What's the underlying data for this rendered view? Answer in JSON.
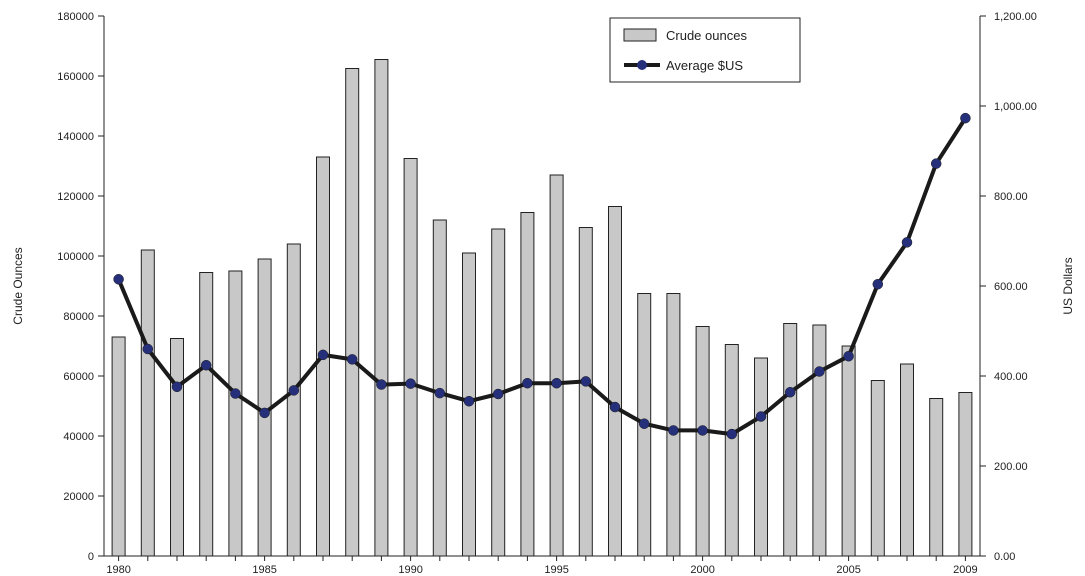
{
  "chart_data": {
    "type": "bar",
    "xlabel": "",
    "ylabel": "Crude Ounces",
    "y2label": "US Dollars",
    "x": [
      1980,
      1981,
      1982,
      1983,
      1984,
      1985,
      1986,
      1987,
      1988,
      1989,
      1990,
      1991,
      1992,
      1993,
      1994,
      1995,
      1996,
      1997,
      1998,
      1999,
      2000,
      2001,
      2002,
      2003,
      2004,
      2005,
      2006,
      2007,
      2008,
      2009
    ],
    "x_tick_labels": [
      "1980",
      "1985",
      "1990",
      "1995",
      "2000",
      "2005",
      "2009"
    ],
    "ylim": [
      0,
      180000
    ],
    "y_tick_labels": [
      "0",
      "20000",
      "40000",
      "60000",
      "80000",
      "100000",
      "120000",
      "140000",
      "160000",
      "180000"
    ],
    "y2lim": [
      0,
      1200
    ],
    "y2_tick_labels": [
      "0.00",
      "200.00",
      "400.00",
      "600.00",
      "800.00",
      "1,000.00",
      "1,200.00"
    ],
    "legend_position": "top-right",
    "grid": false,
    "series": [
      {
        "name": "Crude ounces",
        "type": "bar",
        "axis": "left",
        "color": "#c8c8c8",
        "values": [
          73000,
          102000,
          72500,
          94500,
          95000,
          99000,
          104000,
          133000,
          162500,
          165500,
          132500,
          112000,
          101000,
          109000,
          114500,
          127000,
          109500,
          116500,
          87500,
          87500,
          76500,
          70500,
          66000,
          77500,
          77000,
          70000,
          58500,
          64000,
          52500,
          54500
        ]
      },
      {
        "name": "Average $US",
        "type": "line",
        "axis": "right",
        "color": "#1a1a1a",
        "marker_color": "#26307a",
        "values": [
          615,
          460,
          376,
          424,
          361,
          318,
          368,
          447,
          437,
          381,
          383,
          362,
          344,
          360,
          384,
          384,
          388,
          331,
          294,
          279,
          279,
          271,
          310,
          364,
          410,
          444,
          604,
          697,
          872,
          973
        ]
      }
    ]
  }
}
